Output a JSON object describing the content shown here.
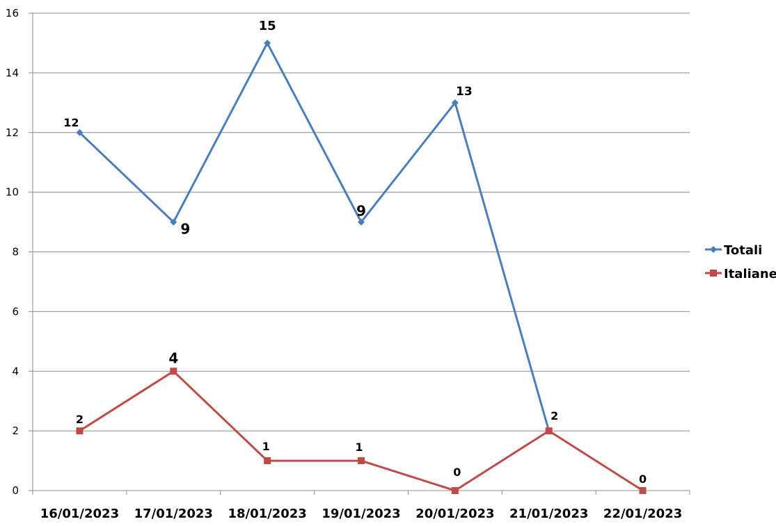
{
  "chart_data": {
    "type": "line",
    "title": "",
    "xlabel": "",
    "ylabel": "",
    "categories": [
      "16/01/2023",
      "17/01/2023",
      "18/01/2023",
      "19/01/2023",
      "20/01/2023",
      "21/01/2023",
      "22/01/2023"
    ],
    "ylim": [
      0,
      16
    ],
    "yticks": [
      0,
      2,
      4,
      6,
      8,
      10,
      12,
      14,
      16
    ],
    "grid": true,
    "legend_position": "right",
    "series": [
      {
        "name": "Totali",
        "color": "#4a7ebb",
        "marker": "diamond",
        "values": [
          12,
          9,
          15,
          9,
          13,
          2,
          null
        ],
        "labels": [
          "12",
          "9",
          "15",
          "9",
          "13",
          "2",
          null
        ]
      },
      {
        "name": "Italiane",
        "color": "#be4b48",
        "marker": "square",
        "values": [
          2,
          4,
          1,
          1,
          0,
          2,
          0
        ],
        "labels": [
          "2",
          "4",
          "1",
          "1",
          "0",
          null,
          "0"
        ]
      }
    ]
  }
}
